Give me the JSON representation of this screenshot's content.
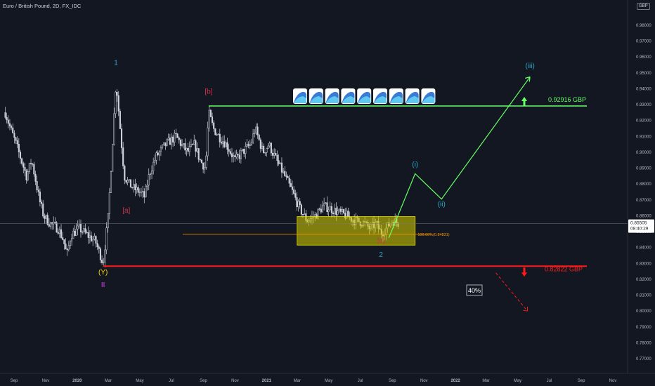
{
  "header": {
    "symbol_title": "Euro / British Pound, 2D, FX_IDC",
    "currency": "GBP"
  },
  "colors": {
    "background": "#131722",
    "candle": "#d1d4dc",
    "green": "#66ff66",
    "red": "#ff1a1a",
    "orange": "#ff9800",
    "yellow_zone": "#c9c300",
    "cyan": "#2fa8c8",
    "yellow_label": "#ffd200",
    "magenta": "#e040fb",
    "maroon": "#d6324a"
  },
  "price_badge": {
    "price": "0.85505",
    "countdown": "08:40:29"
  },
  "chart_data": {
    "type": "candlestick",
    "title": "Euro / British Pound, 2D, FX_IDC",
    "xlabel": "",
    "ylabel": "",
    "ylim": [
      0.764,
      0.987
    ],
    "grid": false,
    "x_ticks": [
      "Sep",
      "Nov",
      "2020",
      "Mar",
      "May",
      "Jul",
      "Sep",
      "Nov",
      "2021",
      "Mar",
      "May",
      "Jul",
      "Sep",
      "Nov",
      "2022",
      "Mar",
      "May",
      "Jul",
      "Sep",
      "Nov"
    ],
    "y_ticks": [
      "0.98000",
      "0.97000",
      "0.96000",
      "0.95000",
      "0.94000",
      "0.93000",
      "0.92000",
      "0.91000",
      "0.90000",
      "0.89000",
      "0.88000",
      "0.87000",
      "0.86000",
      "0.85000",
      "0.84000",
      "0.83000",
      "0.82000",
      "0.81000",
      "0.80000",
      "0.79000",
      "0.78000",
      "0.77000"
    ],
    "y_tick_values": [
      0.98,
      0.97,
      0.96,
      0.95,
      0.94,
      0.93,
      0.92,
      0.91,
      0.9,
      0.89,
      0.88,
      0.87,
      0.86,
      0.85,
      0.84,
      0.83,
      0.82,
      0.81,
      0.8,
      0.79,
      0.78,
      0.77
    ],
    "close_path": [
      [
        "2019-08-15",
        0.925
      ],
      [
        "2019-08-25",
        0.915
      ],
      [
        "2019-09-05",
        0.905
      ],
      [
        "2019-09-15",
        0.895
      ],
      [
        "2019-09-25",
        0.885
      ],
      [
        "2019-10-05",
        0.895
      ],
      [
        "2019-10-20",
        0.87
      ],
      [
        "2019-10-28",
        0.86
      ],
      [
        "2019-11-10",
        0.855
      ],
      [
        "2019-11-25",
        0.852
      ],
      [
        "2019-12-05",
        0.845
      ],
      [
        "2019-12-12",
        0.835
      ],
      [
        "2019-12-20",
        0.848
      ],
      [
        "2020-01-05",
        0.852
      ],
      [
        "2020-01-20",
        0.848
      ],
      [
        "2020-02-05",
        0.844
      ],
      [
        "2020-02-15",
        0.835
      ],
      [
        "2020-02-20",
        0.83
      ],
      [
        "2020-03-01",
        0.86
      ],
      [
        "2020-03-08",
        0.9
      ],
      [
        "2020-03-16",
        0.945
      ],
      [
        "2020-03-24",
        0.915
      ],
      [
        "2020-04-01",
        0.885
      ],
      [
        "2020-04-10",
        0.88
      ],
      [
        "2020-04-20",
        0.877
      ],
      [
        "2020-05-01",
        0.875
      ],
      [
        "2020-05-10",
        0.872
      ],
      [
        "2020-05-20",
        0.887
      ],
      [
        "2020-06-01",
        0.897
      ],
      [
        "2020-06-20",
        0.905
      ],
      [
        "2020-07-10",
        0.91
      ],
      [
        "2020-07-20",
        0.905
      ],
      [
        "2020-08-01",
        0.9
      ],
      [
        "2020-08-15",
        0.905
      ],
      [
        "2020-08-25",
        0.895
      ],
      [
        "2020-09-05",
        0.89
      ],
      [
        "2020-09-11",
        0.925
      ],
      [
        "2020-09-20",
        0.915
      ],
      [
        "2020-10-01",
        0.91
      ],
      [
        "2020-10-15",
        0.905
      ],
      [
        "2020-11-01",
        0.895
      ],
      [
        "2020-11-15",
        0.9
      ],
      [
        "2020-12-01",
        0.905
      ],
      [
        "2020-12-10",
        0.915
      ],
      [
        "2020-12-25",
        0.9
      ],
      [
        "2021-01-05",
        0.905
      ],
      [
        "2021-01-20",
        0.895
      ],
      [
        "2021-02-05",
        0.885
      ],
      [
        "2021-02-20",
        0.875
      ],
      [
        "2021-03-05",
        0.865
      ],
      [
        "2021-03-20",
        0.857
      ],
      [
        "2021-04-05",
        0.86
      ],
      [
        "2021-04-20",
        0.866
      ],
      [
        "2021-05-01",
        0.865
      ],
      [
        "2021-05-20",
        0.862
      ],
      [
        "2021-06-05",
        0.86
      ],
      [
        "2021-06-20",
        0.857
      ],
      [
        "2021-07-05",
        0.856
      ],
      [
        "2021-07-20",
        0.852
      ],
      [
        "2021-08-01",
        0.855
      ],
      [
        "2021-08-10",
        0.849
      ],
      [
        "2021-08-20",
        0.852
      ],
      [
        "2021-09-01",
        0.857
      ],
      [
        "2021-09-15",
        0.855
      ]
    ],
    "levels": [
      {
        "label": "0.92916 GBP",
        "price": 0.92916,
        "color": "green"
      },
      {
        "label": "0.82822 GBP",
        "price": 0.82822,
        "color": "red"
      }
    ],
    "fib_label": "100.00%(0.84831)",
    "fib_price": 0.84831,
    "zone": {
      "start": "2021-03-01",
      "end": "2021-10-15",
      "high": 0.8595,
      "low": 0.8415
    },
    "projection": [
      [
        "2021-08-25",
        0.846
      ],
      [
        "2021-10-15",
        0.8865
      ],
      [
        "2021-12-05",
        0.8705
      ],
      [
        "2022-05-25",
        0.9475
      ]
    ],
    "down_projection": [
      [
        "2022-03-20",
        0.824
      ],
      [
        "2022-05-20",
        0.8
      ]
    ],
    "wave_labels": [
      {
        "text": "1",
        "date": "2020-03-16",
        "price": 0.955,
        "color": "cyan"
      },
      {
        "text": "[b]",
        "date": "2020-09-11",
        "price": 0.937,
        "color": "maroon"
      },
      {
        "text": "[a]",
        "date": "2020-04-05",
        "price": 0.862,
        "color": "maroon"
      },
      {
        "text": "(Y)",
        "date": "2020-02-20",
        "price": 0.823,
        "color": "yellow_label"
      },
      {
        "text": "II",
        "date": "2020-02-20",
        "price": 0.815,
        "color": "magenta"
      },
      {
        "text": "[c]",
        "date": "2021-08-10",
        "price": 0.843,
        "color": "maroon"
      },
      {
        "text": "2",
        "date": "2021-08-10",
        "price": 0.834,
        "color": "cyan"
      },
      {
        "text": "(i)",
        "date": "2021-10-15",
        "price": 0.891,
        "color": "cyan"
      },
      {
        "text": "(ii)",
        "date": "2021-12-05",
        "price": 0.866,
        "color": "cyan"
      },
      {
        "text": "(iii)",
        "date": "2022-05-25",
        "price": 0.953,
        "color": "cyan"
      }
    ],
    "percent_box": "40%",
    "wave_icons_count": 9
  }
}
